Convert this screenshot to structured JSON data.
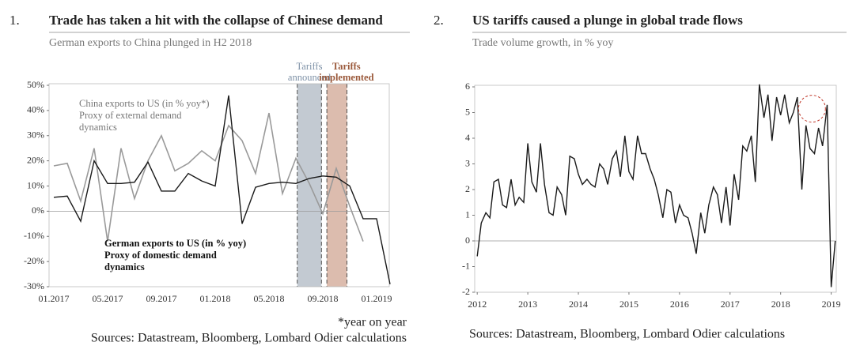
{
  "chart_data": [
    {
      "type": "line",
      "number": "1.",
      "title": "Trade has taken a hit with the collapse of Chinese demand",
      "subtitle": "German exports to China plunged in H2 2018",
      "categories": [
        "01.2017",
        null,
        null,
        null,
        "05.2017",
        null,
        null,
        null,
        "09.2017",
        null,
        null,
        null,
        "01.2018",
        null,
        null,
        null,
        "05.2018",
        null,
        null,
        null,
        "09.2018",
        null,
        null,
        null,
        "01.2019",
        null
      ],
      "series": [
        {
          "name": "China exports to US (in % yoy*)",
          "note": [
            "Proxy of external demand",
            "dynamics"
          ],
          "color": "#9a9a9a",
          "values": [
            18,
            19,
            4,
            25,
            -12,
            25,
            5,
            20,
            30,
            16,
            19,
            24,
            20,
            34,
            28,
            15,
            39,
            7,
            21,
            11,
            -1,
            17,
            2,
            -12,
            null,
            null
          ]
        },
        {
          "name": "German exports to US (in % yoy)",
          "note": [
            "Proxy of domestic demand",
            "dynamics"
          ],
          "color": "#1a1a1a",
          "values": [
            5.5,
            6,
            -4,
            20,
            11,
            11,
            11.5,
            19.5,
            8,
            8,
            15,
            12,
            10,
            46,
            -5,
            9.5,
            11,
            11.5,
            11,
            13,
            14,
            13.5,
            10,
            -3,
            -3,
            -29
          ]
        }
      ],
      "ylim": [
        -30,
        50
      ],
      "yticks": [
        {
          "value": -30,
          "label": "-30%"
        },
        {
          "value": -20,
          "label": "-20%"
        },
        {
          "value": -10,
          "label": "-10%"
        },
        {
          "value": 0,
          "label": "0%"
        },
        {
          "value": 10,
          "label": "10%"
        },
        {
          "value": 20,
          "label": "20%"
        },
        {
          "value": 30,
          "label": "30%"
        },
        {
          "value": 40,
          "label": "40%"
        },
        {
          "value": 50,
          "label": "50%"
        }
      ],
      "annotations": [
        {
          "lines": [
            "Tariffs",
            "announced"
          ],
          "color": "#7d90a6",
          "fill": "#c3cad2"
        },
        {
          "lines": [
            "Tariffs",
            "implemented"
          ],
          "color": "#9b5a3c",
          "fill": "#dcbcae"
        }
      ],
      "footnote": "*year on year",
      "source": "Sources: Datastream, Bloomberg, Lombard Odier calculations"
    },
    {
      "type": "line",
      "number": "2.",
      "title": "US tariffs caused a plunge in global trade flows",
      "subtitle": "Trade volume growth, in % yoy",
      "x": [
        2012,
        2012.08,
        2012.17,
        2012.25,
        2012.33,
        2012.42,
        2012.5,
        2012.58,
        2012.67,
        2012.75,
        2012.83,
        2012.92,
        2013,
        2013.08,
        2013.17,
        2013.25,
        2013.33,
        2013.42,
        2013.5,
        2013.58,
        2013.67,
        2013.75,
        2013.83,
        2013.92,
        2014,
        2014.08,
        2014.17,
        2014.25,
        2014.33,
        2014.42,
        2014.5,
        2014.58,
        2014.67,
        2014.75,
        2014.83,
        2014.92,
        2015,
        2015.08,
        2015.17,
        2015.25,
        2015.33,
        2015.42,
        2015.5,
        2015.58,
        2015.67,
        2015.75,
        2015.83,
        2015.92,
        2016,
        2016.08,
        2016.17,
        2016.25,
        2016.33,
        2016.42,
        2016.5,
        2016.58,
        2016.67,
        2016.75,
        2016.83,
        2016.92,
        2017,
        2017.08,
        2017.17,
        2017.25,
        2017.33,
        2017.42,
        2017.5,
        2017.58,
        2017.67,
        2017.75,
        2017.83,
        2017.92,
        2018,
        2018.08,
        2018.17,
        2018.25,
        2018.33,
        2018.42,
        2018.5,
        2018.58,
        2018.67,
        2018.75,
        2018.83,
        2018.92,
        2019,
        2019.08
      ],
      "series": [
        {
          "name": "Trade volume growth",
          "color": "#1a1a1a",
          "values": [
            -0.6,
            0.7,
            1.1,
            0.9,
            2.3,
            2.4,
            1.4,
            1.3,
            2.4,
            1.4,
            1.7,
            1.5,
            3.8,
            2.3,
            1.9,
            3.8,
            2.2,
            1.1,
            1.0,
            2.1,
            1.8,
            1.0,
            3.3,
            3.2,
            2.6,
            2.2,
            2.4,
            2.2,
            2.1,
            3.0,
            2.8,
            2.2,
            3.2,
            3.5,
            2.5,
            4.1,
            2.7,
            2.4,
            4.1,
            3.4,
            3.4,
            2.8,
            2.4,
            1.8,
            0.9,
            2.0,
            1.9,
            0.7,
            1.4,
            1.0,
            0.9,
            0.3,
            -0.5,
            1.1,
            0.3,
            1.4,
            2.1,
            1.8,
            0.7,
            2.1,
            0.6,
            2.6,
            1.6,
            3.7,
            3.5,
            4.1,
            2.3,
            6.1,
            4.8,
            5.7,
            3.9,
            5.6,
            4.9,
            5.7,
            4.6,
            5.0,
            5.6,
            2.0,
            4.5,
            3.6,
            3.4,
            4.4,
            3.7,
            5.3,
            -1.8,
            0
          ]
        }
      ],
      "xlim": [
        2011.95,
        2019.1
      ],
      "xticks": [
        2012,
        2013,
        2014,
        2015,
        2016,
        2017,
        2018,
        2019
      ],
      "ylim": [
        -2,
        6
      ],
      "yticks": [
        -2,
        -1,
        0,
        1,
        2,
        3,
        4,
        5,
        6
      ],
      "source": "Sources: Datastream, Bloomberg, Lombard Odier calculations"
    }
  ]
}
